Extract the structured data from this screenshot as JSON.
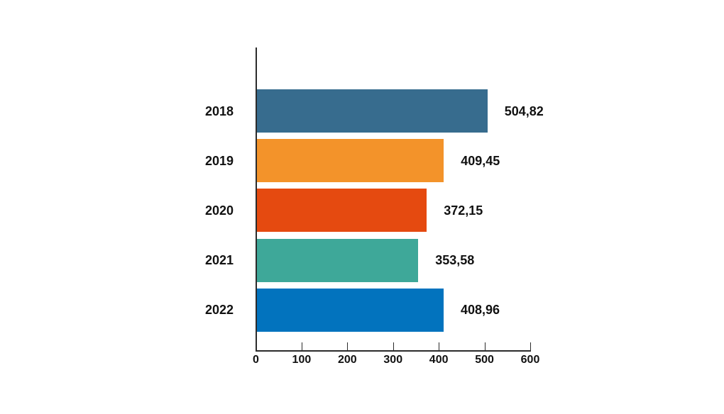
{
  "chart_data": {
    "type": "bar",
    "orientation": "horizontal",
    "title": "",
    "categories": [
      "2018",
      "2019",
      "2020",
      "2021",
      "2022"
    ],
    "values": [
      504.82,
      409.45,
      372.15,
      353.58,
      408.96
    ],
    "value_labels": [
      "504,82",
      "409,45",
      "372,15",
      "353,58",
      "408,96"
    ],
    "bar_colors": [
      "#376C8E",
      "#F3932A",
      "#E54A10",
      "#3EA899",
      "#0273BE"
    ],
    "x_ticks": [
      0,
      100,
      200,
      300,
      400,
      500,
      600
    ],
    "x_tick_labels": [
      "0",
      "100",
      "200",
      "300",
      "400",
      "500",
      "600"
    ],
    "xlim": [
      0,
      600
    ],
    "grid": false,
    "legend": false,
    "axis_color": "#2b2b2b",
    "text_color": "#111111",
    "background": "#ffffff"
  }
}
